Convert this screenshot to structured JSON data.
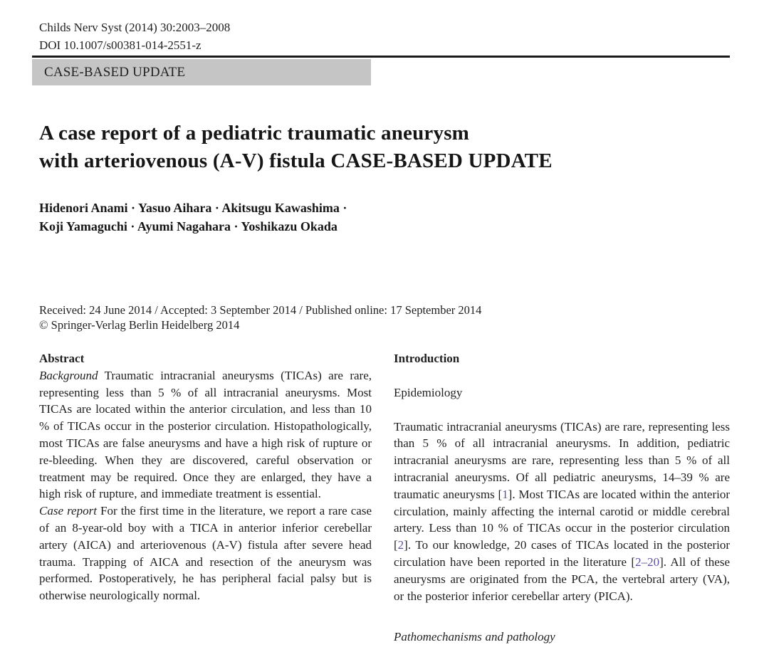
{
  "journal": {
    "citation": "Childs Nerv Syst (2014) 30:2003–2008",
    "doi": "DOI 10.1007/s00381-014-2551-z",
    "article_type": "CASE-BASED UPDATE"
  },
  "title": {
    "line1": "A case report of a pediatric traumatic aneurysm",
    "line2": "with arteriovenous (A-V) fistula CASE-BASED UPDATE"
  },
  "authors": {
    "line1": "Hidenori Anami · Yasuo Aihara · Akitsugu Kawashima ·",
    "line2": "Koji Yamaguchi · Ayumi Nagahara · Yoshikazu Okada"
  },
  "dates": {
    "history": "Received: 24 June 2014 / Accepted: 3 September 2014 / Published online: 17 September 2014",
    "copyright": "© Springer-Verlag Berlin Heidelberg 2014"
  },
  "abstract": {
    "heading": "Abstract",
    "background": [
      {
        "text": "Background",
        "style": "italic-lead",
        "name": "background-lead"
      },
      {
        "text": " Traumatic intracranial aneurysms (TICAs) are rare, representing less than 5 % of all intracranial aneurysms. Most TICAs are located within the anterior circulation, and less than 10 % of TICAs occur in the posterior circulation. Histopathologically, most TICAs are false aneurysms and have a high risk of rupture or re-bleeding. When they are discovered, careful observation or treatment may be required. Once they are enlarged, they have a high risk of rupture, and immediate treatment is essential."
      }
    ],
    "case_report": [
      {
        "text": "Case report",
        "style": "italic-lead",
        "name": "case-report-lead"
      },
      {
        "text": " For the first time in the literature, we report a rare case of an 8-year-old boy with a TICA in anterior inferior cerebellar artery (AICA) and arteriovenous (A-V) fistula after severe head trauma. Trapping of AICA and resection of the aneurysm was performed. Postoperatively, he has peripheral facial palsy but is otherwise neurologically normal."
      }
    ]
  },
  "introduction": {
    "heading": "Introduction",
    "subheading": "Epidemiology",
    "paragraph": [
      {
        "text": "Traumatic intracranial aneurysms (TICAs) are rare, representing less than 5 % of all intracranial aneurysms. In addition, pediatric intracranial aneurysms are rare, representing less than 5 % of all intracranial aneurysms. Of all pediatric aneurysms, 14–39 % are traumatic aneurysms ["
      },
      {
        "text": "1",
        "style": "ref",
        "name": "citation-ref-1",
        "interactable": true
      },
      {
        "text": "]. Most TICAs are located within the anterior circulation, mainly affecting the internal carotid or middle cerebral artery. Less than 10 % of TICAs occur in the posterior circulation ["
      },
      {
        "text": "2",
        "style": "ref",
        "name": "citation-ref-2",
        "interactable": true
      },
      {
        "text": "]. To our knowledge, 20 cases of TICAs located in the posterior circulation have been reported in the literature ["
      },
      {
        "text": "2–20",
        "style": "ref",
        "name": "citation-ref-2-20",
        "interactable": true
      },
      {
        "text": "]. All of these aneurysms are originated from the PCA, the vertebral artery (VA), or the posterior inferior cerebellar artery (PICA)."
      }
    ],
    "next_subheading": "Pathomechanisms and pathology"
  },
  "colors": {
    "banner_bg": "#c5c5c5",
    "citation_link": "#5f4fa0",
    "rule": "#1a1a1a",
    "text": "#1f1f1f"
  }
}
